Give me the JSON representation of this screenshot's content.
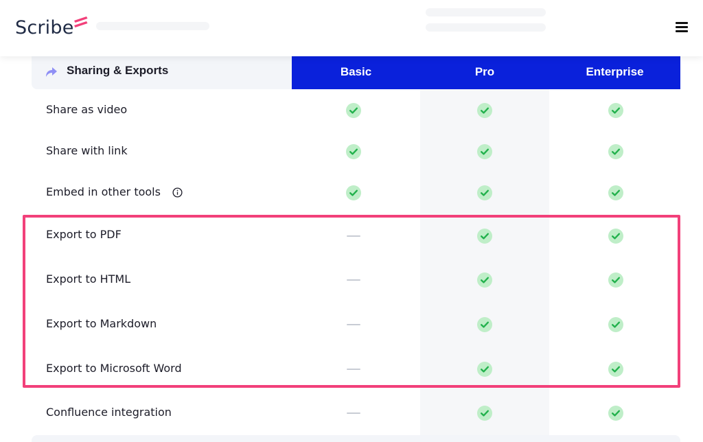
{
  "header": {
    "logo_text": "Scribe",
    "brand_color": "#f2407a",
    "menu_icon": "hamburger-icon"
  },
  "table": {
    "section_title": "Sharing & Exports",
    "section_icon": "share-arrow-icon",
    "header_color": "#0a21db",
    "plans": [
      "Basic",
      "Pro",
      "Enterprise"
    ],
    "rows": [
      {
        "label": "Share as video",
        "info": false,
        "values": [
          "check",
          "check",
          "check"
        ]
      },
      {
        "label": "Share with link",
        "info": false,
        "values": [
          "check",
          "check",
          "check"
        ]
      },
      {
        "label": "Embed in other tools",
        "info": true,
        "values": [
          "check",
          "check",
          "check"
        ]
      },
      {
        "label": "Export to PDF",
        "info": false,
        "values": [
          "dash",
          "check",
          "check"
        ]
      },
      {
        "label": "Export to HTML",
        "info": false,
        "values": [
          "dash",
          "check",
          "check"
        ]
      },
      {
        "label": "Export to Markdown",
        "info": false,
        "values": [
          "dash",
          "check",
          "check"
        ]
      },
      {
        "label": "Export to Microsoft Word",
        "info": false,
        "values": [
          "dash",
          "check",
          "check"
        ]
      },
      {
        "label": "Confluence integration",
        "info": false,
        "values": [
          "dash",
          "check",
          "check"
        ]
      }
    ]
  },
  "highlight": {
    "color": "#f2407a"
  }
}
